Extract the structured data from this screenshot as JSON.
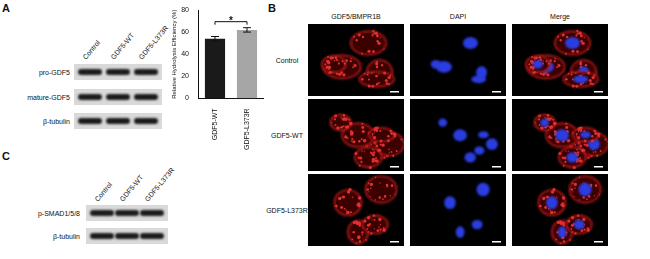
{
  "panels": {
    "A": {
      "label": "A",
      "blot": {
        "lanes": [
          "Control",
          "GDF5-WT",
          "GDF5-L373R"
        ],
        "rows": [
          "pro-GDF5",
          "mature-GDF5",
          "β-tubulin"
        ]
      }
    },
    "B": {
      "label": "B",
      "columns": [
        "GDF5/BMPR1B",
        "DAPI",
        "Merge"
      ],
      "rows": [
        "Control",
        "GDF5-WT",
        "GDF5-L373R"
      ]
    },
    "C": {
      "label": "C",
      "blot": {
        "lanes": [
          "Control",
          "GDF5-WT",
          "GDF5-L373R"
        ],
        "rows": [
          "p-SMAD1/5/8",
          "β-tubulin"
        ]
      }
    }
  },
  "chart_data": {
    "type": "bar",
    "y_label": "Relative Hydrolysis Efficiency (%)",
    "categories": [
      "GDF5-WT",
      "GDF5-L373R"
    ],
    "values": [
      54,
      62
    ],
    "errors": [
      2,
      2
    ],
    "colors": [
      "#1a1a1a",
      "#a6a6a6"
    ],
    "ylim": [
      0,
      80
    ],
    "yticks": [
      0,
      20,
      40,
      60,
      80
    ],
    "grid": false,
    "annotations": [
      {
        "text": "*",
        "between": [
          "GDF5-WT",
          "GDF5-L373R"
        ]
      }
    ]
  }
}
